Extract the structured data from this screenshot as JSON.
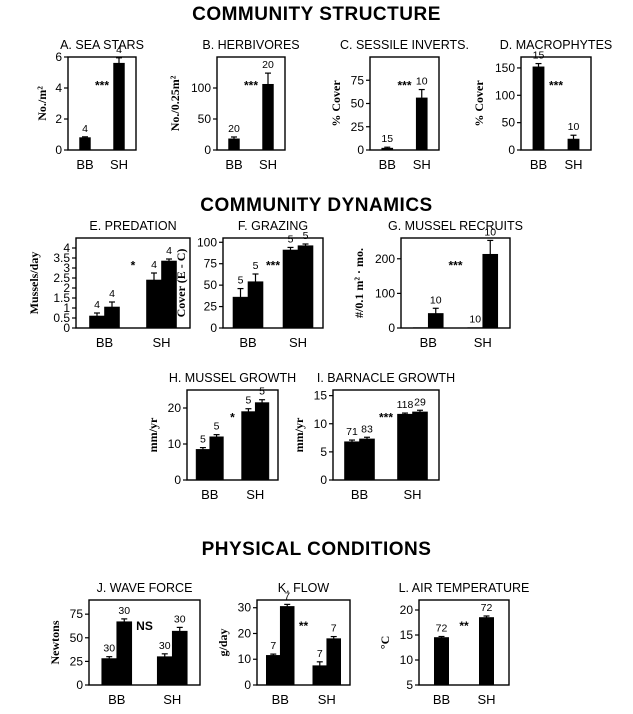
{
  "section_titles": {
    "structure": "COMMUNITY STRUCTURE",
    "dynamics": "COMMUNITY DYNAMICS",
    "physical": "PHYSICAL CONDITIONS"
  },
  "colors": {
    "bar": "#000000",
    "axis": "#000000",
    "background": "#ffffff"
  },
  "chart_data": [
    {
      "id": "A",
      "type": "bar",
      "title": "A. SEA STARS",
      "ylabel": "No./m²",
      "categories": [
        "BB",
        "SH"
      ],
      "ylim": [
        0,
        6
      ],
      "yticks": [
        "0",
        "2",
        "4",
        "6"
      ],
      "series": [
        {
          "values": [
            0.8,
            5.6
          ],
          "errors": [
            0.05,
            0.35
          ],
          "n": [
            "4",
            "4"
          ]
        }
      ],
      "significance": "***"
    },
    {
      "id": "B",
      "type": "bar",
      "title": "B. HERBIVORES",
      "ylabel": "No./0.25m²",
      "categories": [
        "BB",
        "SH"
      ],
      "ylim": [
        0,
        150
      ],
      "yticks": [
        "0",
        "50",
        "100"
      ],
      "series": [
        {
          "values": [
            18,
            106
          ],
          "errors": [
            3,
            18
          ],
          "n": [
            "20",
            "20"
          ]
        }
      ],
      "significance": "***"
    },
    {
      "id": "C",
      "type": "bar",
      "title": "C. SESSILE INVERTS.",
      "ylabel": "% Cover",
      "categories": [
        "BB",
        "SH"
      ],
      "ylim": [
        0,
        100
      ],
      "yticks": [
        "0",
        "25",
        "50",
        "75"
      ],
      "series": [
        {
          "values": [
            2,
            56
          ],
          "errors": [
            1,
            9
          ],
          "n": [
            "15",
            "10"
          ]
        }
      ],
      "significance": "***"
    },
    {
      "id": "D",
      "type": "bar",
      "title": "D. MACROPHYTES",
      "ylabel": "% Cover",
      "categories": [
        "BB",
        "SH"
      ],
      "ylim": [
        0,
        170
      ],
      "yticks": [
        "0",
        "50",
        "100",
        "150"
      ],
      "series": [
        {
          "values": [
            152,
            20
          ],
          "errors": [
            6,
            7
          ],
          "n": [
            "15",
            "10"
          ]
        }
      ],
      "significance": "***"
    },
    {
      "id": "E",
      "type": "bar",
      "title": "E. PREDATION",
      "ylabel": "Mussels/day",
      "categories": [
        "BB",
        "SH"
      ],
      "ylim": [
        0,
        4.5
      ],
      "yticks": [
        "0",
        "0.5",
        "1",
        "1.5",
        "2",
        "2.5",
        "3",
        "3.5",
        "4"
      ],
      "series": [
        {
          "values": [
            0.6,
            2.4
          ],
          "errors": [
            0.15,
            0.35
          ],
          "n": [
            "4",
            "4"
          ]
        },
        {
          "values": [
            1.05,
            3.35
          ],
          "errors": [
            0.25,
            0.1
          ],
          "n": [
            "4",
            "4"
          ]
        }
      ],
      "significance": "*"
    },
    {
      "id": "F",
      "type": "bar",
      "title": "F. GRAZING",
      "ylabel": "Cover (E - C)",
      "categories": [
        "BB",
        "SH"
      ],
      "ylim": [
        0,
        105
      ],
      "yticks": [
        "0",
        "25",
        "50",
        "75",
        "100"
      ],
      "series": [
        {
          "values": [
            36,
            91
          ],
          "errors": [
            10,
            3
          ],
          "n": [
            "5",
            "5"
          ]
        },
        {
          "values": [
            54,
            96
          ],
          "errors": [
            9,
            2
          ],
          "n": [
            "5",
            "5"
          ]
        }
      ],
      "significance": "***"
    },
    {
      "id": "G",
      "type": "bar",
      "title": "G. MUSSEL  RECRUITS",
      "ylabel": "#/0.1 m² · mo.",
      "categories": [
        "BB",
        "SH"
      ],
      "ylim": [
        0,
        260
      ],
      "yticks": [
        "0",
        "100",
        "200"
      ],
      "series": [
        {
          "values": [
            1,
            1
          ],
          "errors": [
            0,
            0
          ],
          "n": [
            "",
            "10"
          ]
        },
        {
          "values": [
            42,
            213
          ],
          "errors": [
            15,
            40
          ],
          "n": [
            "10",
            "10"
          ]
        }
      ],
      "significance": "***"
    },
    {
      "id": "H",
      "type": "bar",
      "title": "H. MUSSEL GROWTH",
      "ylabel": "mm/yr",
      "categories": [
        "BB",
        "SH"
      ],
      "ylim": [
        0,
        25
      ],
      "yticks": [
        "0",
        "10",
        "20"
      ],
      "series": [
        {
          "values": [
            8.5,
            19
          ],
          "errors": [
            0.5,
            0.8
          ],
          "n": [
            "5",
            "5"
          ]
        },
        {
          "values": [
            12,
            21.5
          ],
          "errors": [
            0.6,
            0.8
          ],
          "n": [
            "5",
            "5"
          ]
        }
      ],
      "significance": "*"
    },
    {
      "id": "I",
      "type": "bar",
      "title": "I. BARNACLE GROWTH",
      "ylabel": "mm/yr",
      "categories": [
        "BB",
        "SH"
      ],
      "ylim": [
        0,
        16
      ],
      "yticks": [
        "0",
        "5",
        "10",
        "15"
      ],
      "series": [
        {
          "values": [
            6.8,
            11.7
          ],
          "errors": [
            0.3,
            0.2
          ],
          "n": [
            "71",
            "118"
          ]
        },
        {
          "values": [
            7.3,
            12.1
          ],
          "errors": [
            0.3,
            0.3
          ],
          "n": [
            "83",
            "29"
          ]
        }
      ],
      "significance": "***"
    },
    {
      "id": "J",
      "type": "bar",
      "title": "J. WAVE FORCE",
      "ylabel": "Newtons",
      "categories": [
        "BB",
        "SH"
      ],
      "ylim": [
        0,
        90
      ],
      "yticks": [
        "0",
        "25",
        "50",
        "75"
      ],
      "series": [
        {
          "values": [
            28,
            30
          ],
          "errors": [
            2,
            3
          ],
          "n": [
            "30",
            "30"
          ]
        },
        {
          "values": [
            67,
            57
          ],
          "errors": [
            3,
            4
          ],
          "n": [
            "30",
            "30"
          ]
        }
      ],
      "significance": "NS"
    },
    {
      "id": "K",
      "type": "bar",
      "title": "K. FLOW",
      "ylabel": "g/day",
      "categories": [
        "BB",
        "SH"
      ],
      "ylim": [
        0,
        33
      ],
      "yticks": [
        "0",
        "10",
        "20",
        "30"
      ],
      "series": [
        {
          "values": [
            11.5,
            7.5
          ],
          "errors": [
            0.5,
            1.5
          ],
          "n": [
            "7",
            "7"
          ]
        },
        {
          "values": [
            30.5,
            18
          ],
          "errors": [
            0.8,
            0.8
          ],
          "n": [
            "7",
            "7"
          ]
        }
      ],
      "significance": "**"
    },
    {
      "id": "L",
      "type": "bar",
      "title": "L. AIR TEMPERATURE",
      "ylabel": "°C",
      "categories": [
        "BB",
        "SH"
      ],
      "ylim": [
        5,
        22
      ],
      "yticks": [
        "5",
        "10",
        "15",
        "20"
      ],
      "series": [
        {
          "values": [
            14.5,
            18.5
          ],
          "errors": [
            0.2,
            0.3
          ],
          "n": [
            "72",
            "72"
          ]
        }
      ],
      "significance": "**"
    }
  ]
}
